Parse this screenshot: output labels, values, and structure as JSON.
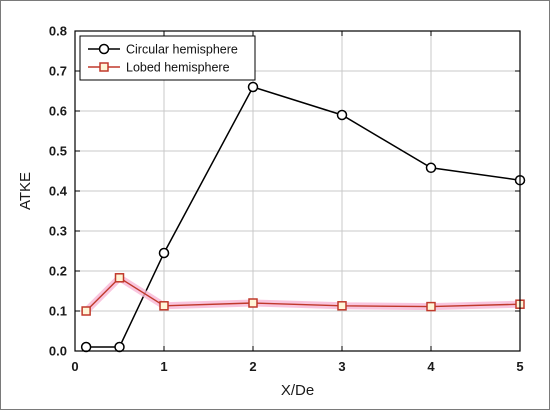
{
  "chart_data": {
    "type": "line",
    "title": "",
    "xlabel": "X/De",
    "ylabel": "ATKE",
    "xlim": [
      0,
      5
    ],
    "ylim": [
      0,
      0.8
    ],
    "xticks": [
      "0",
      "1",
      "2",
      "3",
      "4",
      "5"
    ],
    "yticks": [
      "0.0",
      "0.1",
      "0.2",
      "0.3",
      "0.4",
      "0.5",
      "0.6",
      "0.7",
      "0.8"
    ],
    "grid": true,
    "legend_position": "top-left",
    "series": [
      {
        "name": "Circular hemisphere",
        "color": "#000000",
        "marker": "circle",
        "x": [
          0.125,
          0.5,
          1,
          2,
          3,
          4,
          5
        ],
        "y": [
          0.01,
          0.01,
          0.245,
          0.66,
          0.59,
          0.458,
          0.427
        ]
      },
      {
        "name": "Lobed hemisphere",
        "color": "#c0392b",
        "marker": "square",
        "x": [
          0.125,
          0.5,
          1,
          2,
          3,
          4,
          5
        ],
        "y": [
          0.1,
          0.183,
          0.113,
          0.12,
          0.113,
          0.111,
          0.117
        ]
      }
    ]
  }
}
